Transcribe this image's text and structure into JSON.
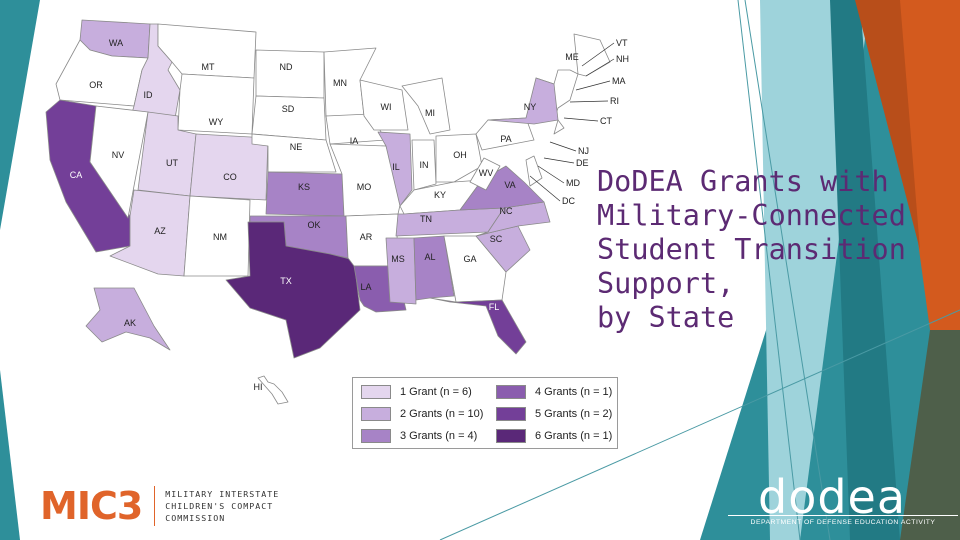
{
  "title_lines": [
    "DoDEA Grants with",
    "Military-Connected",
    "Student Transition",
    "Support,",
    "by State"
  ],
  "legend": [
    {
      "label": "1 Grant (n = 6)",
      "color": "#e4d6ee"
    },
    {
      "label": "2 Grants (n = 10)",
      "color": "#c7aedd"
    },
    {
      "label": "3 Grants (n = 4)",
      "color": "#a783c6"
    },
    {
      "label": "4 Grants (n = 1)",
      "color": "#8a5dae"
    },
    {
      "label": "5 Grants (n = 2)",
      "color": "#733f98"
    },
    {
      "label": "6 Grants (n = 1)",
      "color": "#5a2878"
    }
  ],
  "colors": {
    "zero": "#ffffff",
    "g1": "#e4d6ee",
    "g2": "#c7aedd",
    "g3": "#a783c6",
    "g4": "#8a5dae",
    "g5": "#733f98",
    "g6": "#5a2878",
    "teal": "#2e8f9a",
    "orange": "#d35a1e",
    "title": "#5c2a73"
  },
  "states": {
    "WA": 2,
    "OR": 0,
    "ID": 1,
    "MT": 0,
    "WY": 0,
    "CA": 5,
    "NV": 0,
    "UT": 1,
    "CO": 1,
    "AZ": 1,
    "NM": 0,
    "ND": 0,
    "SD": 0,
    "NE": 0,
    "KS": 3,
    "OK": 3,
    "TX": 6,
    "MN": 0,
    "IA": 0,
    "MO": 0,
    "AR": 0,
    "LA": 4,
    "WI": 0,
    "IL": 2,
    "MI": 0,
    "IN": 0,
    "OH": 0,
    "KY": 0,
    "TN": 2,
    "MS": 2,
    "AL": 3,
    "GA": 0,
    "FL": 5,
    "SC": 2,
    "NC": 2,
    "VA": 3,
    "WV": 0,
    "PA": 0,
    "NY": 2,
    "ME": 0,
    "AK": 2,
    "HI": 0
  },
  "state_labels": [
    "WA",
    "OR",
    "ID",
    "MT",
    "WY",
    "CA",
    "NV",
    "UT",
    "CO",
    "AZ",
    "NM",
    "ND",
    "SD",
    "NE",
    "KS",
    "OK",
    "TX",
    "MN",
    "IA",
    "MO",
    "AR",
    "LA",
    "WI",
    "IL",
    "MI",
    "IN",
    "OH",
    "KY",
    "TN",
    "MS",
    "AL",
    "GA",
    "FL",
    "SC",
    "NC",
    "VA",
    "WV",
    "PA",
    "NY",
    "ME",
    "AK",
    "HI"
  ],
  "callouts": [
    "VT",
    "NH",
    "MA",
    "RI",
    "CT",
    "NJ",
    "DE",
    "MD",
    "DC"
  ],
  "mic3": {
    "logo": "MIC3",
    "lines": [
      "MILITARY INTERSTATE",
      "CHILDREN'S COMPACT",
      "COMMISSION"
    ]
  },
  "dodea": {
    "logo": "dodea",
    "subtitle": "DEPARTMENT OF DEFENSE EDUCATION ACTIVITY"
  }
}
